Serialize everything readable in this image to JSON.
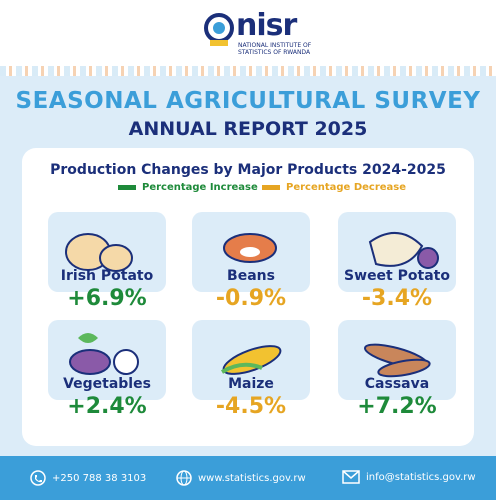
{
  "logo": {
    "name": "nisr",
    "subtitle": [
      "NATIONAL INSTITUTE OF",
      "STATISTICS OF RWANDA"
    ]
  },
  "header": {
    "title": "SEASONAL AGRICULTURAL SURVEY",
    "subtitle": "ANNUAL REPORT 2025"
  },
  "card": {
    "title": "Production Changes by Major Products 2024-2025",
    "legend": {
      "increase": "Percentage Increase",
      "decrease": "Percentage Decrease"
    },
    "products": [
      {
        "name": "Irish Potato",
        "change": "+6.9%"
      },
      {
        "name": "Beans",
        "change": "-0.9%"
      },
      {
        "name": "Sweet Potato",
        "change": "-3.4%"
      },
      {
        "name": "Vegetables",
        "change": "+2.4%"
      },
      {
        "name": "Maize",
        "change": "-4.5%"
      },
      {
        "name": "Cassava",
        "change": "+7.2%"
      }
    ]
  },
  "footer": {
    "phone": "+250 788 38 3103",
    "website": "www.statistics.gov.rw",
    "email": "info@statistics.gov.rw"
  }
}
